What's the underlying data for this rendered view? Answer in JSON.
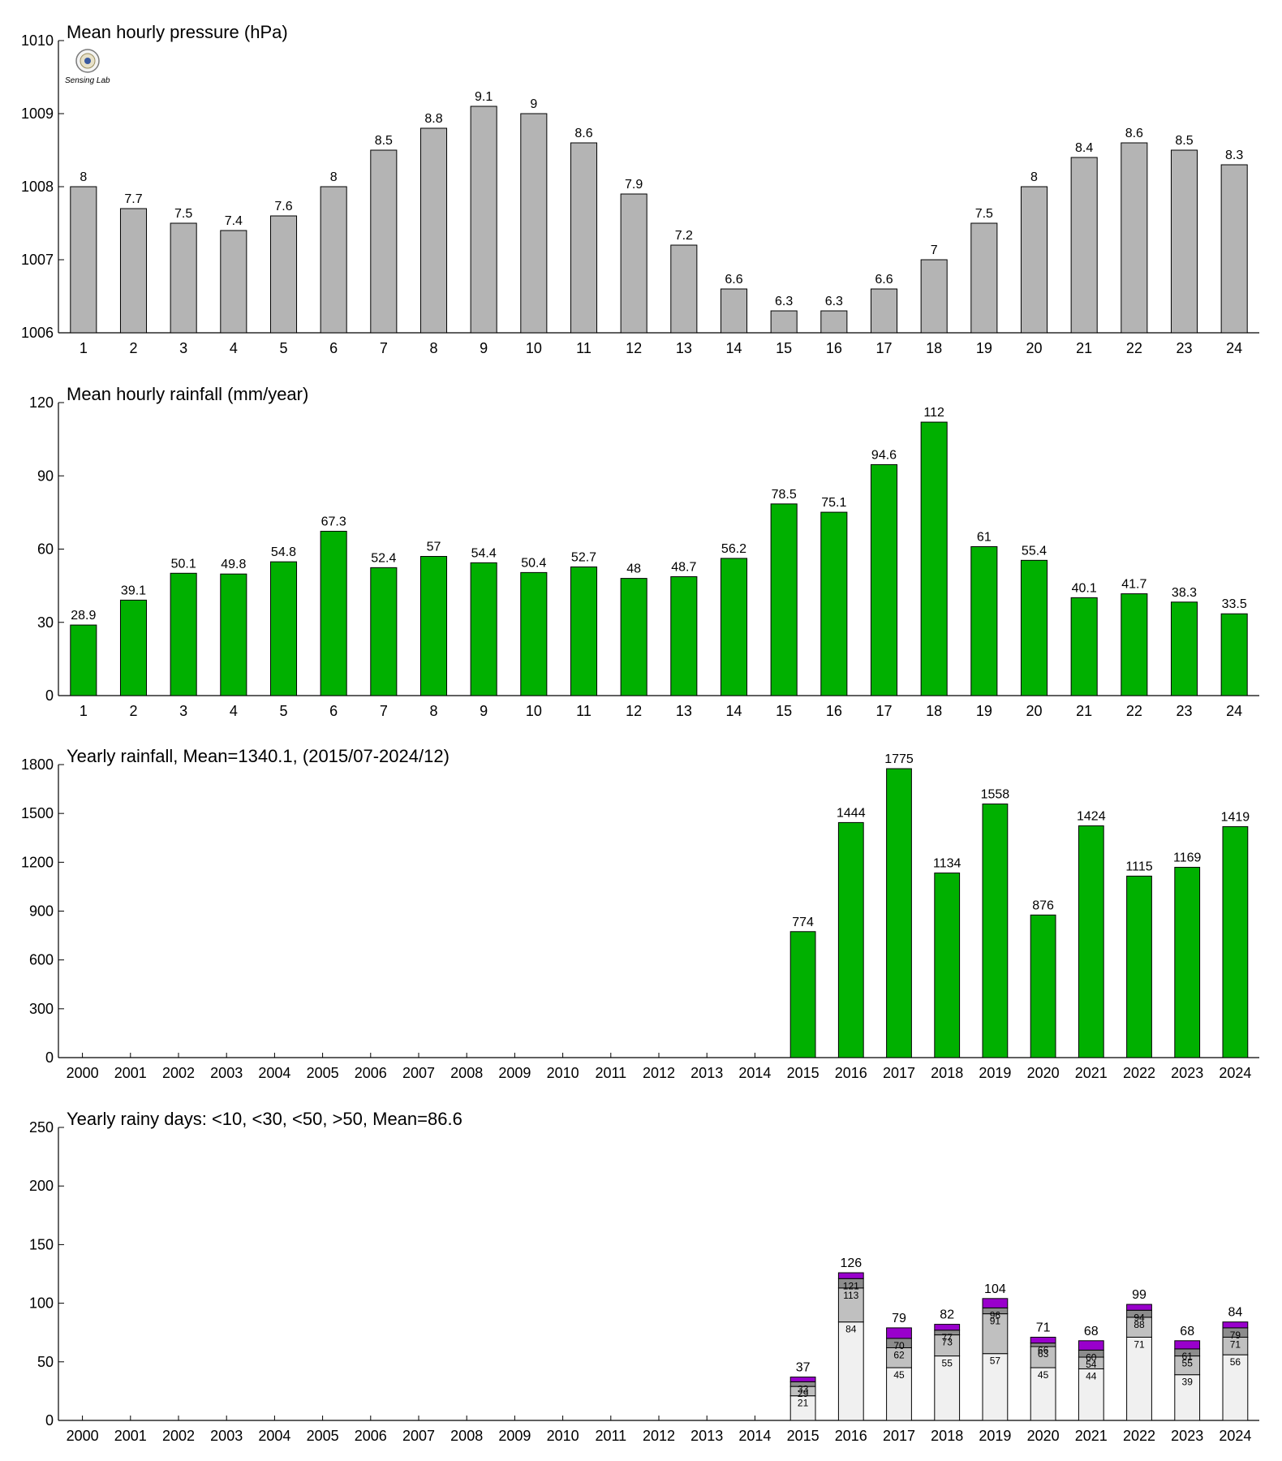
{
  "logo": {
    "text": "Sensing Lab"
  },
  "colors": {
    "pressure": "#b4b4b4",
    "rain": "#00b000",
    "days_lt10": "#f0f0f0",
    "days_lt30": "#c0c0c0",
    "days_lt50": "#8c8c8c",
    "days_gt50": "#9900cc"
  },
  "chart_data": [
    {
      "type": "bar",
      "title": "Mean hourly pressure (hPa)",
      "categories": [
        "1",
        "2",
        "3",
        "4",
        "5",
        "6",
        "7",
        "8",
        "9",
        "10",
        "11",
        "12",
        "13",
        "14",
        "15",
        "16",
        "17",
        "18",
        "19",
        "20",
        "21",
        "22",
        "23",
        "24"
      ],
      "values": [
        1008.0,
        1007.7,
        1007.5,
        1007.4,
        1007.6,
        1008.0,
        1008.5,
        1008.8,
        1009.1,
        1009.0,
        1008.6,
        1007.9,
        1007.2,
        1006.6,
        1006.3,
        1006.3,
        1006.6,
        1007.0,
        1007.5,
        1008.0,
        1008.4,
        1008.6,
        1008.5,
        1008.3
      ],
      "labels": [
        "8",
        "7.7",
        "7.5",
        "7.4",
        "7.6",
        "8",
        "8.5",
        "8.8",
        "9.1",
        "9",
        "8.6",
        "7.9",
        "7.2",
        "6.6",
        "6.3",
        "6.3",
        "6.6",
        "7",
        "7.5",
        "8",
        "8.4",
        "8.6",
        "8.5",
        "8.3"
      ],
      "ylim": [
        1006,
        1010
      ],
      "yticks": [
        "1006",
        "1007",
        "1008",
        "1009",
        "1010"
      ],
      "color_key": "pressure"
    },
    {
      "type": "bar",
      "title": "Mean hourly rainfall (mm/year)",
      "categories": [
        "1",
        "2",
        "3",
        "4",
        "5",
        "6",
        "7",
        "8",
        "9",
        "10",
        "11",
        "12",
        "13",
        "14",
        "15",
        "16",
        "17",
        "18",
        "19",
        "20",
        "21",
        "22",
        "23",
        "24"
      ],
      "values": [
        28.9,
        39.1,
        50.1,
        49.8,
        54.8,
        67.3,
        52.4,
        57,
        54.4,
        50.4,
        52.7,
        48,
        48.7,
        56.2,
        78.5,
        75.1,
        94.6,
        112,
        61,
        55.4,
        40.1,
        41.7,
        38.3,
        33.5
      ],
      "labels": [
        "28.9",
        "39.1",
        "50.1",
        "49.8",
        "54.8",
        "67.3",
        "52.4",
        "57",
        "54.4",
        "50.4",
        "52.7",
        "48",
        "48.7",
        "56.2",
        "78.5",
        "75.1",
        "94.6",
        "112",
        "61",
        "55.4",
        "40.1",
        "41.7",
        "38.3",
        "33.5"
      ],
      "ylim": [
        0,
        120
      ],
      "yticks": [
        "0",
        "30",
        "60",
        "90",
        "120"
      ],
      "color_key": "rain"
    },
    {
      "type": "bar",
      "title": "Yearly rainfall, Mean=1340.1, (2015/07-2024/12)",
      "categories": [
        "2000",
        "2001",
        "2002",
        "2003",
        "2004",
        "2005",
        "2006",
        "2007",
        "2008",
        "2009",
        "2010",
        "2011",
        "2012",
        "2013",
        "2014",
        "2015",
        "2016",
        "2017",
        "2018",
        "2019",
        "2020",
        "2021",
        "2022",
        "2023",
        "2024"
      ],
      "values": [
        null,
        null,
        null,
        null,
        null,
        null,
        null,
        null,
        null,
        null,
        null,
        null,
        null,
        null,
        null,
        774,
        1444,
        1775,
        1134,
        1558,
        876,
        1424,
        1115,
        1169,
        1419
      ],
      "labels": [
        "",
        "",
        "",
        "",
        "",
        "",
        "",
        "",
        "",
        "",
        "",
        "",
        "",
        "",
        "",
        "774",
        "1444",
        "1775",
        "1134",
        "1558",
        "876",
        "1424",
        "1115",
        "1169",
        "1419"
      ],
      "ylim": [
        0,
        1800
      ],
      "yticks": [
        "0",
        "300",
        "600",
        "900",
        "1200",
        "1500",
        "1800"
      ],
      "color_key": "rain"
    },
    {
      "type": "bar",
      "stacked": true,
      "title": "Yearly rainy days: <10, <30, <50, >50, Mean=86.6",
      "categories": [
        "2000",
        "2001",
        "2002",
        "2003",
        "2004",
        "2005",
        "2006",
        "2007",
        "2008",
        "2009",
        "2010",
        "2011",
        "2012",
        "2013",
        "2014",
        "2015",
        "2016",
        "2017",
        "2018",
        "2019",
        "2020",
        "2021",
        "2022",
        "2023",
        "2024"
      ],
      "cumulative": {
        "lt10": [
          null,
          null,
          null,
          null,
          null,
          null,
          null,
          null,
          null,
          null,
          null,
          null,
          null,
          null,
          null,
          21,
          84,
          45,
          55,
          57,
          45,
          44,
          71,
          39,
          56
        ],
        "lt30": [
          null,
          null,
          null,
          null,
          null,
          null,
          null,
          null,
          null,
          null,
          null,
          null,
          null,
          null,
          null,
          29,
          113,
          62,
          73,
          91,
          63,
          54,
          88,
          55,
          71
        ],
        "lt50": [
          null,
          null,
          null,
          null,
          null,
          null,
          null,
          null,
          null,
          null,
          null,
          null,
          null,
          null,
          null,
          33,
          121,
          70,
          77,
          96,
          66,
          60,
          94,
          61,
          79
        ],
        "total": [
          null,
          null,
          null,
          null,
          null,
          null,
          null,
          null,
          null,
          null,
          null,
          null,
          null,
          null,
          null,
          37,
          126,
          79,
          82,
          104,
          71,
          68,
          99,
          68,
          84
        ]
      },
      "segment_labels": {
        "lt10": [
          "",
          "",
          "",
          "",
          "",
          "",
          "",
          "",
          "",
          "",
          "",
          "",
          "",
          "",
          "",
          "21",
          "84",
          "45",
          "55",
          "57",
          "45",
          "44",
          "71",
          "39",
          "56"
        ],
        "lt30": [
          "",
          "",
          "",
          "",
          "",
          "",
          "",
          "",
          "",
          "",
          "",
          "",
          "",
          "",
          "",
          "29",
          "113",
          "62",
          "73",
          "91",
          "63",
          "54",
          "88",
          "55",
          "71"
        ],
        "lt50": [
          "",
          "",
          "",
          "",
          "",
          "",
          "",
          "",
          "",
          "",
          "",
          "",
          "",
          "",
          "",
          "33",
          "121",
          "70",
          "77",
          "96",
          "66",
          "60",
          "94",
          "61",
          "79"
        ],
        "total": [
          "",
          "",
          "",
          "",
          "",
          "",
          "",
          "",
          "",
          "",
          "",
          "",
          "",
          "",
          "",
          "37",
          "126",
          "79",
          "82",
          "104",
          "71",
          "68",
          "99",
          "68",
          "84"
        ]
      },
      "ylim": [
        0,
        250
      ],
      "yticks": [
        "0",
        "50",
        "100",
        "150",
        "200",
        "250"
      ]
    }
  ]
}
